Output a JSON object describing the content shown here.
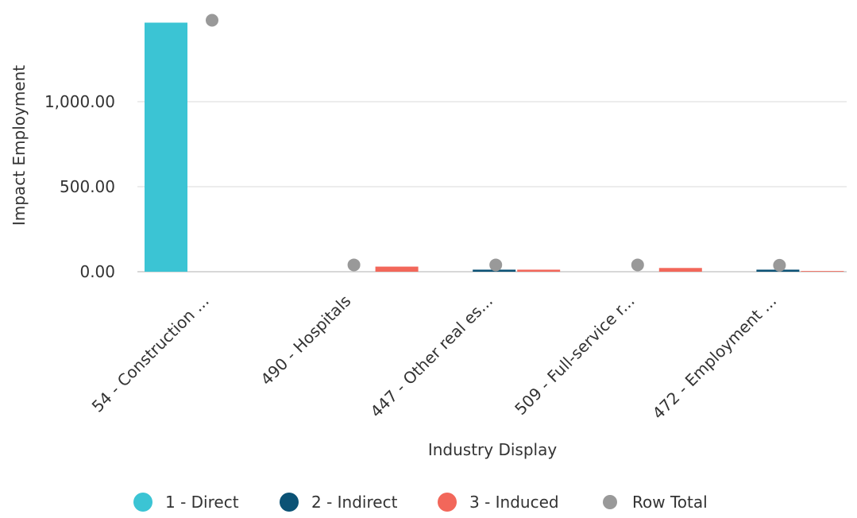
{
  "chart_data": {
    "type": "bar",
    "xlabel": "Industry Display",
    "ylabel": "Impact Employment",
    "categories": [
      "54 - Construction ...",
      "490 - Hospitals",
      "447 - Other real es...",
      "509 - Full-service r...",
      "472 - Employment ..."
    ],
    "series": [
      {
        "name": "1 - Direct",
        "color": "#3bc4d4",
        "values": [
          1465,
          0,
          0,
          0,
          0
        ]
      },
      {
        "name": "2 - Indirect",
        "color": "#0b5275",
        "values": [
          0,
          0,
          12,
          0,
          12
        ]
      },
      {
        "name": "3 - Induced",
        "color": "#f2675a",
        "values": [
          0,
          30,
          12,
          22,
          4
        ]
      }
    ],
    "row_total": {
      "name": "Row Total",
      "color": "#999999",
      "values": [
        1479,
        40,
        40,
        40,
        38
      ]
    },
    "y_ticks": [
      "0.00",
      "500.00",
      "1,000.00"
    ],
    "y_tick_values": [
      0,
      500,
      1000
    ],
    "ylim": [
      0,
      1500
    ],
    "grid": true,
    "legend_placement": "bottom"
  }
}
